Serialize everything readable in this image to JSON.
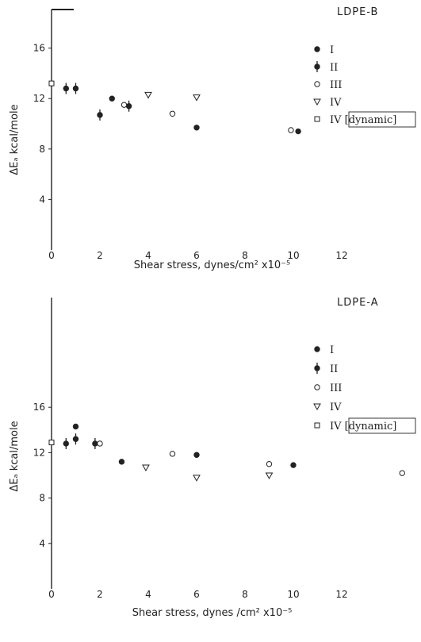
{
  "chart_data": [
    {
      "type": "scatter",
      "title": "LDPE-B",
      "xlabel": "Shear stress, dynes/cm² x10⁻⁵",
      "ylabel": "ΔEₐ kcal/mole",
      "xlim": [
        0,
        14
      ],
      "ylim": [
        0,
        19.5
      ],
      "xticks": [
        "0",
        "2",
        "4",
        "6",
        "8",
        "10",
        "12"
      ],
      "yticks": [
        "4",
        "8",
        "12",
        "16"
      ],
      "legend_position": "top-right",
      "series": [
        {
          "name": "I",
          "marker": "filled-circle",
          "points": [
            [
              2.5,
              12.0
            ],
            [
              6.0,
              9.7
            ],
            [
              10.2,
              9.4
            ]
          ]
        },
        {
          "name": "II",
          "marker": "circle-with-errorbar",
          "points": [
            [
              0.6,
              12.8
            ],
            [
              1.0,
              12.8
            ],
            [
              2.0,
              10.7
            ],
            [
              3.2,
              11.4
            ]
          ]
        },
        {
          "name": "III",
          "marker": "open-circle",
          "points": [
            [
              3.0,
              11.5
            ],
            [
              5.0,
              10.8
            ],
            [
              9.9,
              9.5
            ]
          ]
        },
        {
          "name": "IV",
          "marker": "open-triangle",
          "points": [
            [
              4.0,
              12.3
            ],
            [
              6.0,
              12.1
            ]
          ]
        },
        {
          "name": "IV [dynamic]",
          "marker": "open-square",
          "points": [
            [
              0.0,
              13.2
            ]
          ]
        }
      ]
    },
    {
      "type": "scatter",
      "title": "LDPE-A",
      "xlabel": "Shear stress, dynes /cm² x10⁻⁵",
      "ylabel": "ΔEₐ kcal/mole",
      "xlim": [
        0,
        14
      ],
      "ylim": [
        0,
        28
      ],
      "xticks": [
        "0",
        "2",
        "4",
        "6",
        "8",
        "10",
        "12"
      ],
      "yticks": [
        "4",
        "8",
        "12",
        "16"
      ],
      "legend_position": "top-right",
      "series": [
        {
          "name": "I",
          "marker": "filled-circle",
          "points": [
            [
              1.0,
              14.3
            ],
            [
              2.9,
              11.2
            ],
            [
              6.0,
              11.8
            ],
            [
              10.0,
              10.9
            ]
          ]
        },
        {
          "name": "II",
          "marker": "circle-with-errorbar",
          "points": [
            [
              0.6,
              12.8
            ],
            [
              1.0,
              13.2
            ],
            [
              1.8,
              12.8
            ]
          ]
        },
        {
          "name": "III",
          "marker": "open-circle",
          "points": [
            [
              2.0,
              12.8
            ],
            [
              5.0,
              11.9
            ],
            [
              9.0,
              11.0
            ],
            [
              14.5,
              10.2
            ]
          ]
        },
        {
          "name": "IV",
          "marker": "open-triangle",
          "points": [
            [
              3.9,
              10.7
            ],
            [
              6.0,
              9.8
            ],
            [
              9.0,
              10.0
            ]
          ]
        },
        {
          "name": "IV [dynamic]",
          "marker": "open-square",
          "points": [
            [
              0.0,
              12.9
            ]
          ]
        }
      ]
    }
  ]
}
